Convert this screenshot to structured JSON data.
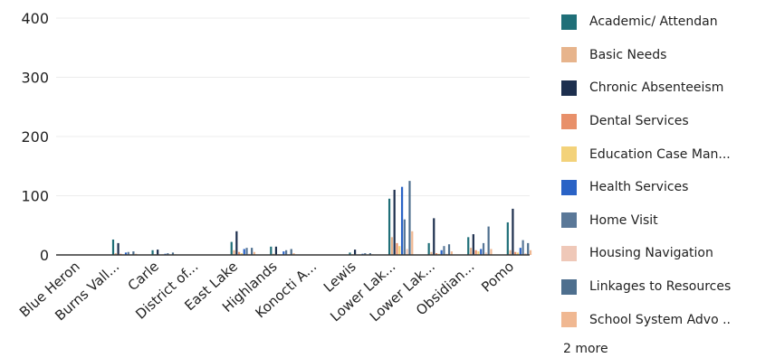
{
  "chart_data": {
    "type": "bar",
    "ylim": [
      0,
      400
    ],
    "yticks": [
      0,
      100,
      200,
      300,
      400
    ],
    "grid": true,
    "legend_position": "right",
    "categories": [
      "Blue Heron",
      "Burns Vall...",
      "Carle",
      "District of...",
      "East Lake",
      "Highlands",
      "Konocti A...",
      "Lewis",
      "Lower Lak...",
      "Lower Lak...",
      "Obsidian...",
      "Pomo"
    ],
    "series": [
      {
        "name": "Academic/ Attendan",
        "color": "#1f6f78",
        "values": [
          0,
          26,
          8,
          0,
          22,
          14,
          0,
          4,
          95,
          20,
          30,
          55
        ]
      },
      {
        "name": "Basic Needs",
        "color": "#e7b48c",
        "values": [
          0,
          3,
          1,
          0,
          8,
          2,
          0,
          1,
          30,
          5,
          12,
          8
        ]
      },
      {
        "name": "Chronic Absenteeism",
        "color": "#1d2f4e",
        "values": [
          0,
          20,
          9,
          0,
          40,
          14,
          0,
          9,
          110,
          62,
          35,
          78
        ]
      },
      {
        "name": "Dental Services",
        "color": "#e8906a",
        "values": [
          0,
          2,
          0,
          0,
          5,
          1,
          0,
          0,
          20,
          3,
          8,
          5
        ]
      },
      {
        "name": "Education Case Man...",
        "color": "#f3d27a",
        "values": [
          0,
          1,
          1,
          0,
          3,
          1,
          0,
          1,
          15,
          2,
          6,
          4
        ]
      },
      {
        "name": "Health Services",
        "color": "#2a63c6",
        "values": [
          0,
          4,
          2,
          0,
          10,
          6,
          0,
          2,
          115,
          8,
          10,
          12
        ]
      },
      {
        "name": "Home Visit",
        "color": "#5a7898",
        "values": [
          0,
          5,
          3,
          0,
          12,
          8,
          0,
          3,
          60,
          15,
          20,
          25
        ]
      },
      {
        "name": "Housing Navigation",
        "color": "#efc8b8",
        "values": [
          0,
          1,
          0,
          0,
          2,
          1,
          0,
          0,
          10,
          2,
          4,
          3
        ]
      },
      {
        "name": "Linkages to Resources",
        "color": "#4e6f8e",
        "values": [
          0,
          6,
          4,
          0,
          12,
          10,
          0,
          3,
          125,
          18,
          48,
          20
        ]
      },
      {
        "name": "School System Advo ..",
        "color": "#f0b892",
        "values": [
          0,
          2,
          1,
          0,
          5,
          3,
          0,
          1,
          40,
          6,
          10,
          8
        ]
      }
    ],
    "legend_more": "2 more"
  }
}
